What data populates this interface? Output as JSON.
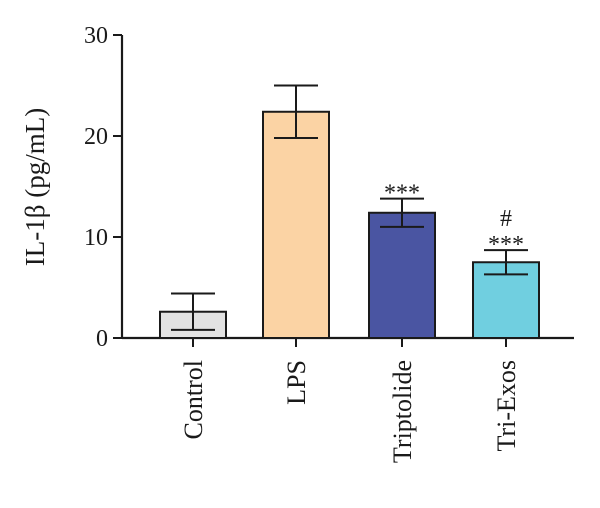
{
  "chart_data": {
    "type": "bar",
    "ylabel": "IL-1β (pg/mL)",
    "ylim": [
      0,
      30
    ],
    "yticks": [
      0,
      10,
      20,
      30
    ],
    "categories": [
      "Control",
      "LPS",
      "Triptolide",
      "Tri-Exos"
    ],
    "values": [
      2.6,
      22.4,
      12.4,
      7.5
    ],
    "errors": [
      1.8,
      2.6,
      1.4,
      1.2
    ],
    "colors": [
      "#e2e2e2",
      "#fbd3a4",
      "#4a55a2",
      "#70cfe0"
    ],
    "annotations": [
      {
        "category": "Control",
        "marks": []
      },
      {
        "category": "LPS",
        "marks": []
      },
      {
        "category": "Triptolide",
        "marks": [
          "***"
        ]
      },
      {
        "category": "Tri-Exos",
        "marks": [
          "#",
          "***"
        ]
      }
    ],
    "grid": false,
    "legend": "none"
  }
}
